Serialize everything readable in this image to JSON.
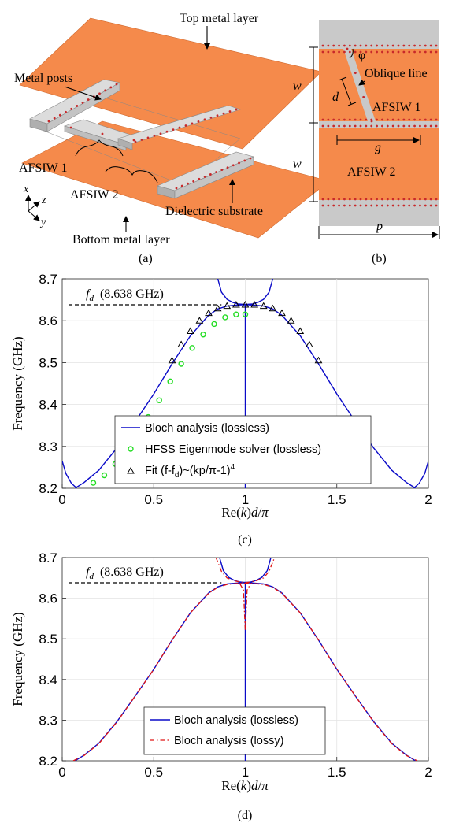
{
  "colors": {
    "substrate": "#F58A4B",
    "metal_gray": "#C9C9C9",
    "post_red": "#C8282A",
    "bloch_lossless": "#0A0AC8",
    "bloch_lossy": "#E01414",
    "hfss": "#22DD22",
    "fit": "#000000"
  },
  "panel_a": {
    "label": "(a)",
    "top_metal_layer": "Top metal layer",
    "metal_posts": "Metal posts",
    "afsiw1": "AFSIW 1",
    "afsiw2": "AFSIW 2",
    "dielectric_substrate": "Dielectric substrate",
    "bottom_metal_layer": "Bottom metal layer",
    "axis_x": "x",
    "axis_y": "y",
    "axis_z": "z"
  },
  "panel_b": {
    "label": "(b)",
    "phi": "φ",
    "oblique_line": "Oblique line",
    "w_top": "w",
    "w_bottom": "w",
    "d": "d",
    "g": "g",
    "p": "p",
    "afsiw1": "AFSIW 1",
    "afsiw2": "AFSIW 2"
  },
  "chart_data": [
    {
      "id": "c",
      "type": "line",
      "label": "(c)",
      "xlabel": "Re(k)d/π",
      "ylabel": "Frequency (GHz)",
      "xlim": [
        0,
        2
      ],
      "ylim": [
        8.2,
        8.7
      ],
      "xticks": [
        "0",
        "0.5",
        "1",
        "1.5",
        "2"
      ],
      "yticks": [
        "8.2",
        "8.3",
        "8.4",
        "8.5",
        "8.6",
        "8.7"
      ],
      "grid": true,
      "legend_position": "lower-center",
      "annotation": {
        "symbol": "f",
        "subscript": "d",
        "text": "(8.638 GHz)",
        "value": 8.638
      },
      "series": [
        {
          "name": "Bloch analysis (lossless)",
          "style": "line",
          "x": [
            0.07,
            0.12,
            0.2,
            0.3,
            0.4,
            0.5,
            0.6,
            0.7,
            0.8,
            0.85,
            0.9,
            0.95,
            0.98,
            1.0,
            1.02,
            1.05,
            1.1,
            1.15,
            1.2,
            1.3,
            1.4,
            1.5,
            1.6,
            1.7,
            1.8,
            1.88,
            1.93
          ],
          "y": [
            8.2,
            8.214,
            8.243,
            8.297,
            8.36,
            8.425,
            8.497,
            8.564,
            8.613,
            8.628,
            8.635,
            8.637,
            8.638,
            8.638,
            8.638,
            8.637,
            8.635,
            8.628,
            8.613,
            8.564,
            8.497,
            8.425,
            8.36,
            8.297,
            8.243,
            8.214,
            8.2
          ],
          "upper_branch": {
            "x": [
              0.85,
              0.87,
              0.9,
              0.93,
              0.96,
              0.99,
              1.0,
              1.01,
              1.04,
              1.07,
              1.1,
              1.13,
              1.15
            ],
            "y": [
              8.7,
              8.668,
              8.651,
              8.644,
              8.64,
              8.639,
              8.639,
              8.639,
              8.64,
              8.644,
              8.651,
              8.668,
              8.7
            ]
          },
          "vertical_line_x": 1.0,
          "side_branches": [
            {
              "x": [
                0.0,
                0.02,
                0.05,
                0.08
              ],
              "y": [
                8.265,
                8.235,
                8.212,
                8.2
              ]
            },
            {
              "x": [
                1.92,
                1.95,
                1.98,
                2.0
              ],
              "y": [
                8.2,
                8.212,
                8.235,
                8.265
              ]
            }
          ]
        },
        {
          "name": "HFSS Eigenmode solver (lossless)",
          "style": "marker-circle",
          "x": [
            0.17,
            0.23,
            0.29,
            0.35,
            0.41,
            0.47,
            0.53,
            0.59,
            0.65,
            0.71,
            0.77,
            0.83,
            0.89,
            0.95,
            1.0
          ],
          "y": [
            8.213,
            8.231,
            8.258,
            8.292,
            8.33,
            8.37,
            8.41,
            8.455,
            8.497,
            8.535,
            8.567,
            8.592,
            8.608,
            8.615,
            8.615
          ]
        },
        {
          "name": "Fit (f-f_d)~(kp/π-1)^4",
          "style": "marker-triangle",
          "x": [
            0.6,
            0.65,
            0.7,
            0.75,
            0.8,
            0.85,
            0.9,
            0.95,
            1.0,
            1.05,
            1.1,
            1.15,
            1.2,
            1.25,
            1.3,
            1.35,
            1.4
          ],
          "y": [
            8.505,
            8.543,
            8.575,
            8.6,
            8.618,
            8.629,
            8.635,
            8.638,
            8.638,
            8.638,
            8.635,
            8.629,
            8.618,
            8.6,
            8.575,
            8.543,
            8.505
          ]
        }
      ]
    },
    {
      "id": "d",
      "type": "line",
      "label": "(d)",
      "xlabel": "Re(k)d/π",
      "ylabel": "Frequency (GHz)",
      "xlim": [
        0,
        2
      ],
      "ylim": [
        8.2,
        8.7
      ],
      "xticks": [
        "0",
        "0.5",
        "1",
        "1.5",
        "2"
      ],
      "yticks": [
        "8.2",
        "8.3",
        "8.4",
        "8.5",
        "8.6",
        "8.7"
      ],
      "grid": true,
      "legend_position": "lower-center",
      "annotation": {
        "symbol": "f",
        "subscript": "d",
        "text": "(8.638 GHz)",
        "value": 8.638
      },
      "series": [
        {
          "name": "Bloch analysis (lossless)",
          "style": "line",
          "x": [
            0.07,
            0.12,
            0.2,
            0.3,
            0.4,
            0.5,
            0.6,
            0.7,
            0.8,
            0.85,
            0.9,
            0.95,
            0.98,
            1.0,
            1.02,
            1.05,
            1.1,
            1.15,
            1.2,
            1.3,
            1.4,
            1.5,
            1.6,
            1.7,
            1.8,
            1.88,
            1.93
          ],
          "y": [
            8.2,
            8.214,
            8.243,
            8.297,
            8.36,
            8.425,
            8.497,
            8.564,
            8.613,
            8.628,
            8.635,
            8.637,
            8.638,
            8.638,
            8.638,
            8.637,
            8.635,
            8.628,
            8.613,
            8.564,
            8.497,
            8.425,
            8.36,
            8.297,
            8.243,
            8.214,
            8.2
          ],
          "upper_branch": {
            "x": [
              0.86,
              0.88,
              0.91,
              0.94,
              0.97,
              0.99,
              1.0,
              1.01,
              1.03,
              1.06,
              1.09,
              1.12,
              1.14
            ],
            "y": [
              8.7,
              8.668,
              8.651,
              8.644,
              8.64,
              8.639,
              8.639,
              8.639,
              8.64,
              8.644,
              8.651,
              8.668,
              8.7
            ]
          },
          "vertical_line_x": 1.0
        },
        {
          "name": "Bloch analysis (lossy)",
          "style": "dashdot",
          "x": [
            0.06,
            0.12,
            0.2,
            0.3,
            0.4,
            0.5,
            0.6,
            0.7,
            0.8,
            0.85,
            0.9,
            0.95,
            0.98,
            1.0,
            1.02,
            1.05,
            1.1,
            1.15,
            1.2,
            1.3,
            1.4,
            1.5,
            1.6,
            1.7,
            1.8,
            1.88,
            1.94
          ],
          "y": [
            8.2,
            8.213,
            8.242,
            8.296,
            8.36,
            8.425,
            8.497,
            8.564,
            8.612,
            8.627,
            8.634,
            8.636,
            8.637,
            8.637,
            8.637,
            8.636,
            8.634,
            8.627,
            8.612,
            8.564,
            8.497,
            8.425,
            8.36,
            8.296,
            8.242,
            8.213,
            8.2
          ],
          "upper_branch": {
            "x": [
              0.84,
              0.87,
              0.9,
              0.94,
              0.97,
              0.99,
              1.0,
              1.01,
              1.03,
              1.06,
              1.1,
              1.13,
              1.16
            ],
            "y": [
              8.7,
              8.666,
              8.65,
              8.643,
              8.64,
              8.639,
              8.639,
              8.639,
              8.64,
              8.643,
              8.65,
              8.666,
              8.7
            ]
          },
          "dip": {
            "x": [
              0.97,
              0.99,
              1.0,
              1.01,
              1.03
            ],
            "y": [
              8.636,
              8.62,
              8.52,
              8.62,
              8.636
            ]
          }
        }
      ]
    }
  ]
}
